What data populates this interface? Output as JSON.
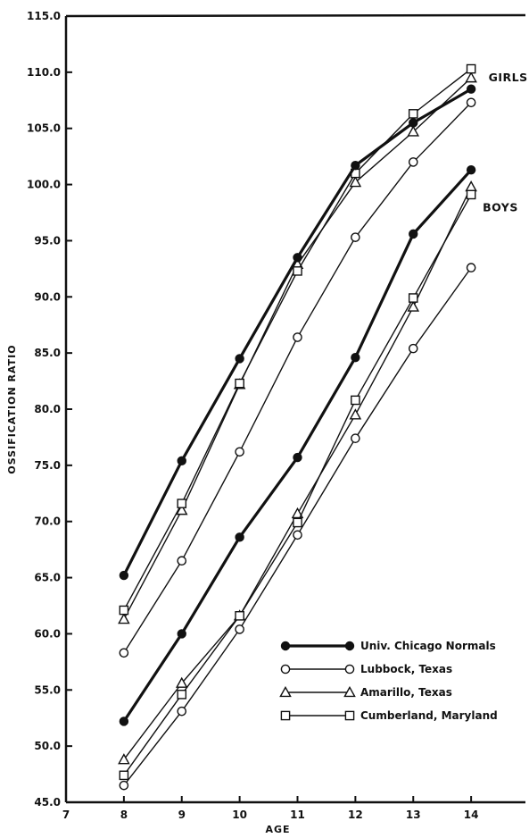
{
  "chart_data": {
    "type": "line",
    "xlabel": "AGE",
    "ylabel": "OSSIFICATION RATIO",
    "xlim": [
      7,
      15
    ],
    "ylim": [
      45,
      115
    ],
    "x_ticks": [
      "7",
      "8",
      "9",
      "10",
      "11",
      "12",
      "13",
      "14"
    ],
    "y_ticks": [
      "45.0",
      "50.0",
      "55.0",
      "60.0",
      "65.0",
      "70.0",
      "75.0",
      "80.0",
      "85.0",
      "90.0",
      "95.0",
      "100.0",
      "105.0",
      "110.0",
      "115.0"
    ],
    "group_labels": [
      {
        "text": "GIRLS",
        "x": 14.3,
        "y": 109.2
      },
      {
        "text": "BOYS",
        "x": 14.2,
        "y": 97.6
      }
    ],
    "x": [
      8,
      9,
      10,
      11,
      12,
      13,
      14
    ],
    "series": [
      {
        "name": "Univ. Chicago Normals",
        "marker": "filled-circle",
        "weight": "heavy",
        "girls": [
          65.2,
          75.4,
          84.5,
          93.5,
          101.7,
          105.5,
          108.5
        ],
        "boys": [
          52.2,
          60.0,
          68.6,
          75.7,
          84.6,
          95.6,
          101.3
        ]
      },
      {
        "name": "Lubbock, Texas",
        "marker": "open-circle",
        "weight": "light",
        "girls": [
          58.3,
          66.5,
          76.2,
          86.4,
          95.3,
          102.0,
          107.3
        ],
        "boys": [
          46.5,
          53.1,
          60.4,
          68.8,
          77.4,
          85.4,
          92.6
        ]
      },
      {
        "name": "Amarillo, Texas",
        "marker": "open-triangle",
        "weight": "light",
        "girls": [
          61.3,
          71.0,
          82.2,
          92.9,
          100.2,
          104.7,
          109.5
        ],
        "boys": [
          48.8,
          55.6,
          61.6,
          70.7,
          79.5,
          89.1,
          99.8
        ]
      },
      {
        "name": "Cumberland, Maryland",
        "marker": "open-square",
        "weight": "light",
        "girls": [
          62.1,
          71.6,
          82.3,
          92.3,
          101.0,
          106.3,
          110.3
        ],
        "boys": [
          47.4,
          54.6,
          61.6,
          69.9,
          80.8,
          89.9,
          99.1
        ]
      }
    ],
    "legend_position": "lower-right",
    "grid": false
  }
}
